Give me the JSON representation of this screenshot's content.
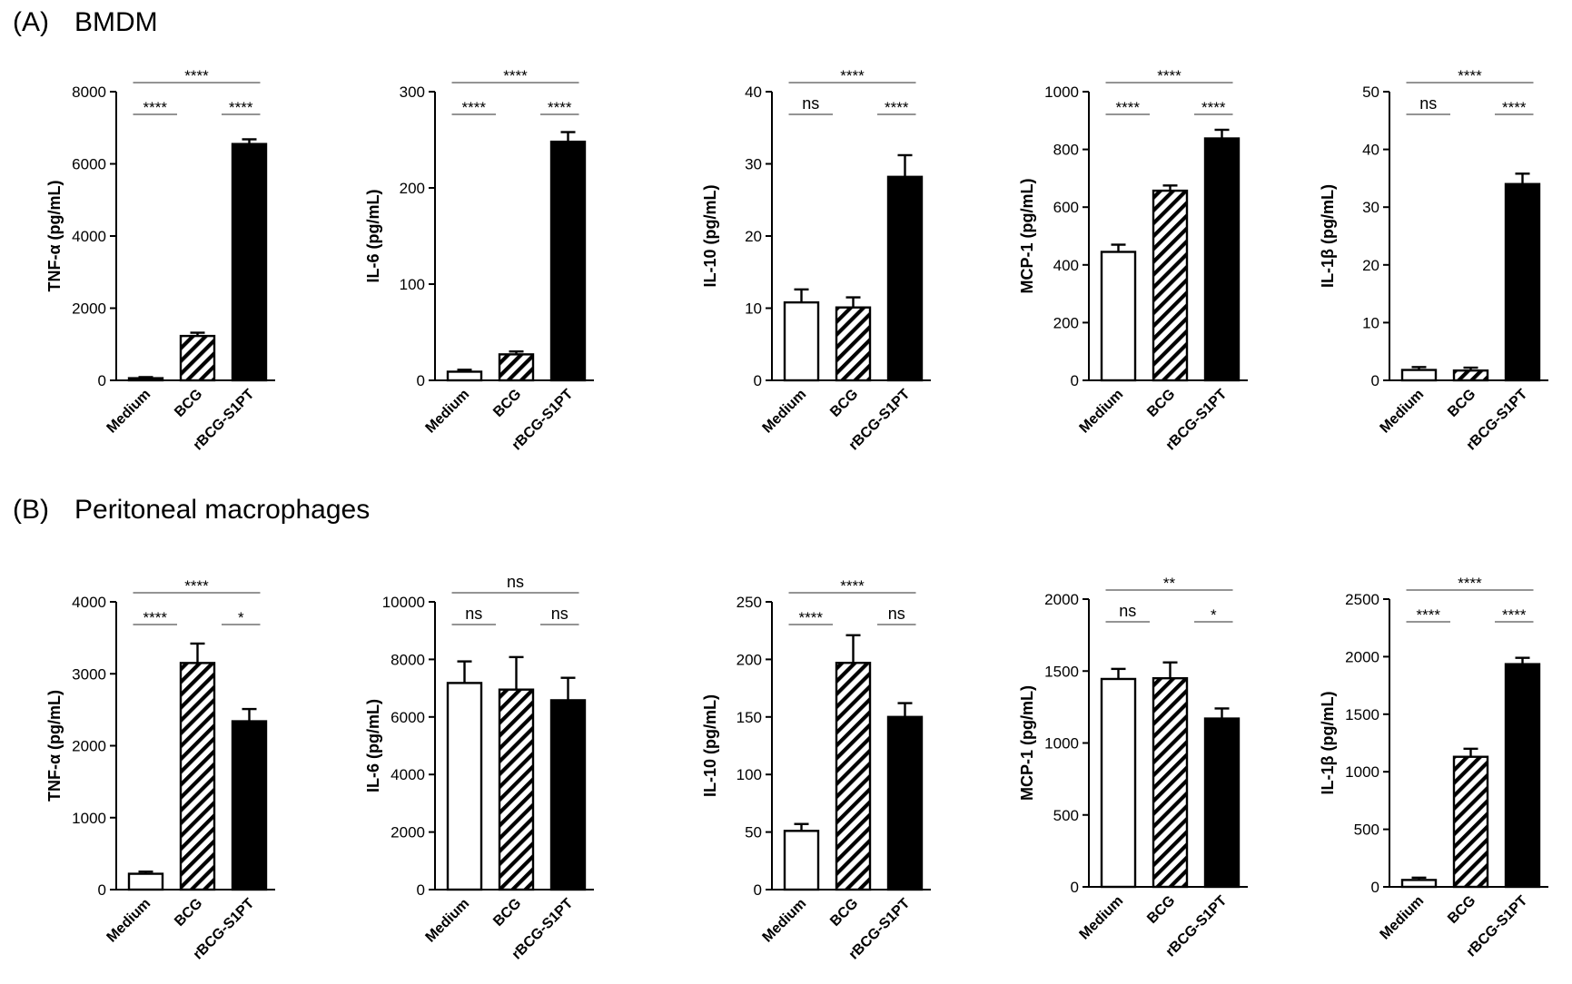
{
  "panels": [
    {
      "letter": "(A)",
      "title": "BMDM"
    },
    {
      "letter": "(B)",
      "title": "Peritoneal macrophages"
    }
  ],
  "fill_colors": {
    "medium": "#ffffff",
    "bcg": "hatch",
    "rbcg": "#000000"
  },
  "chart_data": [
    {
      "type": "bar",
      "panel": "A",
      "ylabel": "TNF-α  (pg/mL)",
      "categories": [
        "Medium",
        "BCG",
        "rBCG-S1PT"
      ],
      "values": [
        60,
        1230,
        6550
      ],
      "errors": [
        30,
        90,
        130
      ],
      "ylim": [
        0,
        8000
      ],
      "yticks": [
        0,
        2000,
        4000,
        6000,
        8000
      ],
      "annotations": [
        {
          "pair": "Medium-BCG",
          "label": "****"
        },
        {
          "pair": "BCG-rBCG-S1PT",
          "label": "****"
        },
        {
          "pair": "Medium-rBCG-S1PT",
          "label": "****"
        }
      ]
    },
    {
      "type": "bar",
      "panel": "A",
      "ylabel": "IL-6 (pg/mL)",
      "categories": [
        "Medium",
        "BCG",
        "rBCG-S1PT"
      ],
      "values": [
        9,
        27,
        248
      ],
      "errors": [
        2,
        3,
        10
      ],
      "ylim": [
        0,
        300
      ],
      "yticks": [
        0,
        100,
        200,
        300
      ],
      "annotations": [
        {
          "pair": "Medium-BCG",
          "label": "****"
        },
        {
          "pair": "BCG-rBCG-S1PT",
          "label": "****"
        },
        {
          "pair": "Medium-rBCG-S1PT",
          "label": "****"
        }
      ]
    },
    {
      "type": "bar",
      "panel": "A",
      "ylabel": "IL-10 (pg/mL)",
      "categories": [
        "Medium",
        "BCG",
        "rBCG-S1PT"
      ],
      "values": [
        10.8,
        10.1,
        28.2
      ],
      "errors": [
        1.8,
        1.4,
        3.0
      ],
      "ylim": [
        0,
        40
      ],
      "yticks": [
        0,
        10,
        20,
        30,
        40
      ],
      "annotations": [
        {
          "pair": "Medium-BCG",
          "label": "ns"
        },
        {
          "pair": "BCG-rBCG-S1PT",
          "label": "****"
        },
        {
          "pair": "Medium-rBCG-S1PT",
          "label": "****"
        }
      ]
    },
    {
      "type": "bar",
      "panel": "A",
      "ylabel": "MCP-1  (pg/mL)",
      "categories": [
        "Medium",
        "BCG",
        "rBCG-S1PT"
      ],
      "values": [
        445,
        657,
        838
      ],
      "errors": [
        25,
        18,
        30
      ],
      "ylim": [
        0,
        1000
      ],
      "yticks": [
        0,
        200,
        400,
        600,
        800,
        1000
      ],
      "annotations": [
        {
          "pair": "Medium-BCG",
          "label": "****"
        },
        {
          "pair": "BCG-rBCG-S1PT",
          "label": "****"
        },
        {
          "pair": "Medium-rBCG-S1PT",
          "label": "****"
        }
      ]
    },
    {
      "type": "bar",
      "panel": "A",
      "ylabel": "IL-1β (pg/mL)",
      "categories": [
        "Medium",
        "BCG",
        "rBCG-S1PT"
      ],
      "values": [
        1.8,
        1.7,
        34
      ],
      "errors": [
        0.5,
        0.5,
        1.8
      ],
      "ylim": [
        0,
        50
      ],
      "yticks": [
        0,
        10,
        20,
        30,
        40,
        50
      ],
      "annotations": [
        {
          "pair": "Medium-BCG",
          "label": "ns"
        },
        {
          "pair": "BCG-rBCG-S1PT",
          "label": "****"
        },
        {
          "pair": "Medium-rBCG-S1PT",
          "label": "****"
        }
      ]
    },
    {
      "type": "bar",
      "panel": "B",
      "ylabel": "TNF-α  (pg/mL)",
      "categories": [
        "Medium",
        "BCG",
        "rBCG-S1PT"
      ],
      "values": [
        220,
        3150,
        2340
      ],
      "errors": [
        30,
        270,
        170
      ],
      "ylim": [
        0,
        4000
      ],
      "yticks": [
        0,
        1000,
        2000,
        3000,
        4000
      ],
      "annotations": [
        {
          "pair": "Medium-BCG",
          "label": "****"
        },
        {
          "pair": "BCG-rBCG-S1PT",
          "label": "*"
        },
        {
          "pair": "Medium-rBCG-S1PT",
          "label": "****"
        }
      ]
    },
    {
      "type": "bar",
      "panel": "B",
      "ylabel": "IL-6 (pg/mL)",
      "categories": [
        "Medium",
        "BCG",
        "rBCG-S1PT"
      ],
      "values": [
        7180,
        6950,
        6580
      ],
      "errors": [
        750,
        1130,
        780
      ],
      "ylim": [
        0,
        10000
      ],
      "yticks": [
        0,
        2000,
        4000,
        6000,
        8000,
        10000
      ],
      "annotations": [
        {
          "pair": "Medium-BCG",
          "label": "ns"
        },
        {
          "pair": "BCG-rBCG-S1PT",
          "label": "ns"
        },
        {
          "pair": "Medium-rBCG-S1PT",
          "label": "ns"
        }
      ]
    },
    {
      "type": "bar",
      "panel": "B",
      "ylabel": "IL-10 (pg/mL)",
      "categories": [
        "Medium",
        "BCG",
        "rBCG-S1PT"
      ],
      "values": [
        51,
        197,
        150
      ],
      "errors": [
        6,
        24,
        12
      ],
      "ylim": [
        0,
        250
      ],
      "yticks": [
        0,
        50,
        100,
        150,
        200,
        250
      ],
      "annotations": [
        {
          "pair": "Medium-BCG",
          "label": "****"
        },
        {
          "pair": "BCG-rBCG-S1PT",
          "label": "ns"
        },
        {
          "pair": "Medium-rBCG-S1PT",
          "label": "****"
        }
      ]
    },
    {
      "type": "bar",
      "panel": "B",
      "ylabel": "MCP-1  (pg/mL)",
      "categories": [
        "Medium",
        "BCG",
        "rBCG-S1PT"
      ],
      "values": [
        1445,
        1450,
        1170
      ],
      "errors": [
        70,
        110,
        70
      ],
      "ylim": [
        0,
        2000
      ],
      "yticks": [
        0,
        500,
        1000,
        1500,
        2000
      ],
      "annotations": [
        {
          "pair": "Medium-BCG",
          "label": "ns"
        },
        {
          "pair": "BCG-rBCG-S1PT",
          "label": "*"
        },
        {
          "pair": "Medium-rBCG-S1PT",
          "label": "**"
        }
      ]
    },
    {
      "type": "bar",
      "panel": "B",
      "ylabel": "IL-1β (pg/mL)",
      "categories": [
        "Medium",
        "BCG",
        "rBCG-S1PT"
      ],
      "values": [
        60,
        1130,
        1935
      ],
      "errors": [
        20,
        70,
        55
      ],
      "ylim": [
        0,
        2500
      ],
      "yticks": [
        0,
        500,
        1000,
        1500,
        2000,
        2500
      ],
      "annotations": [
        {
          "pair": "Medium-BCG",
          "label": "****"
        },
        {
          "pair": "BCG-rBCG-S1PT",
          "label": "****"
        },
        {
          "pair": "Medium-rBCG-S1PT",
          "label": "****"
        }
      ]
    }
  ]
}
